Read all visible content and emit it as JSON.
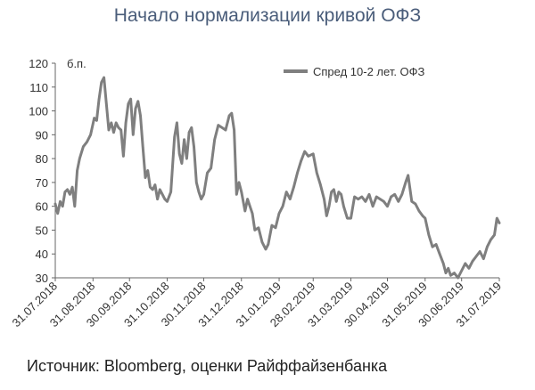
{
  "title": "Начало нормализации кривой ОФЗ",
  "source": "Источник: Bloomberg, оценки Райффайзенбанка",
  "chart_data": {
    "type": "line",
    "title": "Начало нормализации кривой ОФЗ",
    "xlabel": "",
    "ylabel": "",
    "unit_label": "б.п.",
    "ylim": [
      30,
      120
    ],
    "yticks": [
      30,
      40,
      50,
      60,
      70,
      80,
      90,
      100,
      110,
      120
    ],
    "xlim": [
      "31.07.2018",
      "31.07.2019"
    ],
    "xticks": [
      "31.07.2018",
      "31.08.2018",
      "30.09.2018",
      "31.10.2018",
      "30.11.2018",
      "31.12.2018",
      "31.01.2019",
      "28.02.2019",
      "31.03.2019",
      "30.04.2019",
      "31.05.2019",
      "30.06.2019",
      "31.07.2019"
    ],
    "grid": false,
    "legend_position": "top-right",
    "series": [
      {
        "name": "Спред 10-2 лет. ОФЗ",
        "color": "#7f7f7f",
        "points": [
          [
            "31.07.2018",
            61
          ],
          [
            "02.08.2018",
            57
          ],
          [
            "04.08.2018",
            62
          ],
          [
            "06.08.2018",
            60
          ],
          [
            "08.08.2018",
            66
          ],
          [
            "10.08.2018",
            67
          ],
          [
            "12.08.2018",
            65
          ],
          [
            "14.08.2018",
            68
          ],
          [
            "16.08.2018",
            60
          ],
          [
            "18.08.2018",
            75
          ],
          [
            "20.08.2018",
            80
          ],
          [
            "23.08.2018",
            85
          ],
          [
            "26.08.2018",
            87
          ],
          [
            "29.08.2018",
            90
          ],
          [
            "01.09.2018",
            97
          ],
          [
            "03.09.2018",
            96
          ],
          [
            "05.09.2018",
            105
          ],
          [
            "07.09.2018",
            112
          ],
          [
            "09.09.2018",
            114
          ],
          [
            "11.09.2018",
            103
          ],
          [
            "13.09.2018",
            92
          ],
          [
            "15.09.2018",
            95
          ],
          [
            "17.09.2018",
            91
          ],
          [
            "19.09.2018",
            95
          ],
          [
            "21.09.2018",
            93
          ],
          [
            "23.09.2018",
            92
          ],
          [
            "25.09.2018",
            81
          ],
          [
            "27.09.2018",
            95
          ],
          [
            "29.09.2018",
            103
          ],
          [
            "01.10.2018",
            105
          ],
          [
            "03.10.2018",
            90
          ],
          [
            "05.10.2018",
            101
          ],
          [
            "07.10.2018",
            104
          ],
          [
            "09.10.2018",
            98
          ],
          [
            "11.10.2018",
            85
          ],
          [
            "13.10.2018",
            72
          ],
          [
            "15.10.2018",
            75
          ],
          [
            "17.10.2018",
            68
          ],
          [
            "19.10.2018",
            67
          ],
          [
            "21.10.2018",
            69
          ],
          [
            "23.10.2018",
            63
          ],
          [
            "25.10.2018",
            67
          ],
          [
            "27.10.2018",
            65
          ],
          [
            "29.10.2018",
            63
          ],
          [
            "31.10.2018",
            62
          ],
          [
            "03.11.2018",
            66
          ],
          [
            "06.11.2018",
            89
          ],
          [
            "08.11.2018",
            95
          ],
          [
            "10.11.2018",
            82
          ],
          [
            "12.11.2018",
            78
          ],
          [
            "14.11.2018",
            88
          ],
          [
            "16.11.2018",
            80
          ],
          [
            "18.11.2018",
            91
          ],
          [
            "20.11.2018",
            93
          ],
          [
            "22.11.2018",
            85
          ],
          [
            "24.11.2018",
            70
          ],
          [
            "26.11.2018",
            66
          ],
          [
            "28.11.2018",
            63
          ],
          [
            "30.11.2018",
            65
          ],
          [
            "03.12.2018",
            74
          ],
          [
            "06.12.2018",
            76
          ],
          [
            "09.12.2018",
            88
          ],
          [
            "12.12.2018",
            94
          ],
          [
            "15.12.2018",
            93
          ],
          [
            "18.12.2018",
            92
          ],
          [
            "21.12.2018",
            98
          ],
          [
            "23.12.2018",
            99
          ],
          [
            "25.12.2018",
            92
          ],
          [
            "27.12.2018",
            65
          ],
          [
            "29.12.2018",
            70
          ],
          [
            "31.12.2018",
            66
          ],
          [
            "03.01.2019",
            58
          ],
          [
            "05.01.2019",
            63
          ],
          [
            "07.01.2019",
            60
          ],
          [
            "09.01.2019",
            57
          ],
          [
            "11.01.2019",
            50
          ],
          [
            "14.01.2019",
            51
          ],
          [
            "17.01.2019",
            45
          ],
          [
            "20.01.2019",
            42
          ],
          [
            "22.01.2019",
            44
          ],
          [
            "25.01.2019",
            52
          ],
          [
            "28.01.2019",
            51
          ],
          [
            "31.01.2019",
            57
          ],
          [
            "03.02.2019",
            60
          ],
          [
            "06.02.2019",
            66
          ],
          [
            "09.02.2019",
            63
          ],
          [
            "12.02.2019",
            68
          ],
          [
            "15.02.2019",
            74
          ],
          [
            "18.02.2019",
            79
          ],
          [
            "21.02.2019",
            83
          ],
          [
            "24.02.2019",
            81
          ],
          [
            "28.02.2019",
            82
          ],
          [
            "03.03.2019",
            74
          ],
          [
            "06.03.2019",
            69
          ],
          [
            "09.03.2019",
            63
          ],
          [
            "11.03.2019",
            56
          ],
          [
            "13.03.2019",
            60
          ],
          [
            "15.03.2019",
            66
          ],
          [
            "17.03.2019",
            67
          ],
          [
            "19.03.2019",
            62
          ],
          [
            "21.03.2019",
            66
          ],
          [
            "23.03.2019",
            65
          ],
          [
            "25.03.2019",
            60
          ],
          [
            "28.03.2019",
            55
          ],
          [
            "31.03.2019",
            55
          ],
          [
            "03.04.2019",
            64
          ],
          [
            "06.04.2019",
            63
          ],
          [
            "09.04.2019",
            64
          ],
          [
            "12.04.2019",
            62
          ],
          [
            "15.04.2019",
            65
          ],
          [
            "18.04.2019",
            60
          ],
          [
            "21.04.2019",
            64
          ],
          [
            "24.04.2019",
            63
          ],
          [
            "27.04.2019",
            62
          ],
          [
            "30.04.2019",
            60
          ],
          [
            "03.05.2019",
            64
          ],
          [
            "06.05.2019",
            65
          ],
          [
            "09.05.2019",
            62
          ],
          [
            "12.05.2019",
            65
          ],
          [
            "15.05.2019",
            70
          ],
          [
            "17.05.2019",
            73
          ],
          [
            "20.05.2019",
            62
          ],
          [
            "23.05.2019",
            61
          ],
          [
            "26.05.2019",
            58
          ],
          [
            "29.05.2019",
            56
          ],
          [
            "31.05.2019",
            55
          ],
          [
            "03.06.2019",
            48
          ],
          [
            "06.06.2019",
            43
          ],
          [
            "09.06.2019",
            44
          ],
          [
            "12.06.2019",
            40
          ],
          [
            "15.06.2019",
            36
          ],
          [
            "17.06.2019",
            32
          ],
          [
            "19.06.2019",
            34
          ],
          [
            "21.06.2019",
            31
          ],
          [
            "24.06.2019",
            32
          ],
          [
            "27.06.2019",
            30
          ],
          [
            "30.06.2019",
            33
          ],
          [
            "03.07.2019",
            36
          ],
          [
            "06.07.2019",
            34
          ],
          [
            "09.07.2019",
            37
          ],
          [
            "12.07.2019",
            39
          ],
          [
            "15.07.2019",
            41
          ],
          [
            "18.07.2019",
            38
          ],
          [
            "21.07.2019",
            43
          ],
          [
            "24.07.2019",
            46
          ],
          [
            "27.07.2019",
            48
          ],
          [
            "29.07.2019",
            55
          ],
          [
            "31.07.2019",
            53
          ]
        ]
      }
    ]
  }
}
